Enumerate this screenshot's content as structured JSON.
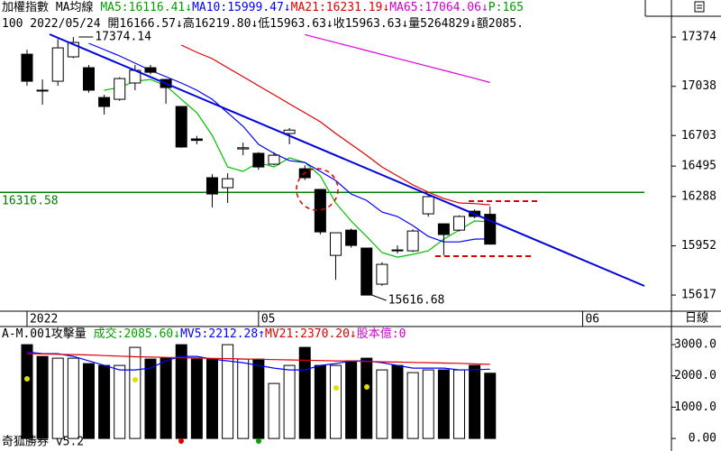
{
  "header": {
    "title": "加權指數 MA均線",
    "indicators": [
      {
        "text": "MA5:16116.41↓",
        "color": "#00a000"
      },
      {
        "text": "MA10:15999.47↓",
        "color": "#0000ff"
      },
      {
        "text": "MA21:16231.19↓",
        "color": "#e00000"
      },
      {
        "text": "MA65:17064.06↓",
        "color": "#d000d0"
      },
      {
        "text": "P:165",
        "color": "#00a000"
      }
    ],
    "quote": "100 2022/05/24 開16166.57↓高16219.80↓低15963.63↓收15963.63↓量5264829↓額2085."
  },
  "period": "日線",
  "footer": "奇狐勝券 v5.2",
  "chart_data": [
    {
      "type": "candlestick",
      "up_color": "#ffffff",
      "down_color": "#000000",
      "open": [
        17257,
        17012,
        17073,
        17239,
        17165,
        16962,
        16950,
        17061,
        17165,
        17085,
        16901,
        16680,
        16416,
        16348,
        16612,
        16582,
        16508,
        16717,
        16477,
        16336,
        15887,
        16059,
        15937,
        15691,
        15924,
        15918,
        16170,
        16102,
        16059,
        16188,
        16166.57
      ],
      "high": [
        17288,
        17085,
        17360,
        17374.14,
        17184,
        16981,
        17100,
        17184,
        17184,
        17085,
        16901,
        16700,
        16440,
        16446,
        16655,
        16590,
        16590,
        16754,
        16500,
        16340,
        16041,
        16070,
        15937,
        15840,
        15955,
        16065,
        16300,
        16102,
        16160,
        16200,
        16219.8
      ],
      "low": [
        17042,
        16913,
        17042,
        17230,
        16995,
        16846,
        16940,
        17012,
        17120,
        16919,
        16620,
        16643,
        16213,
        16244,
        16569,
        16470,
        16500,
        16643,
        16400,
        16030,
        15721,
        15940,
        15616.68,
        15680,
        15900,
        15910,
        16150,
        15887,
        16050,
        16140,
        15963.63
      ],
      "close": [
        17073,
        17006,
        17300,
        17337,
        17012,
        16901,
        17091,
        17147,
        17134,
        17030,
        16625,
        16670,
        16305,
        16409,
        16620,
        16489,
        16569,
        16740,
        16416,
        16047,
        16041,
        15955,
        15616.68,
        15826,
        15918,
        16053,
        16287,
        16029,
        16152,
        16152,
        15963.63
      ],
      "lines": [
        {
          "name": "MA5",
          "color": "#00c000",
          "values": [
            null,
            null,
            null,
            null,
            null,
            17012,
            17030,
            17073,
            17085,
            17042,
            16950,
            16858,
            16704,
            16489,
            16459,
            16520,
            16489,
            16551,
            16520,
            16428,
            16244,
            16121,
            16016,
            15906,
            15875,
            15894,
            15918,
            15998,
            16059,
            16121,
            16116.41
          ]
        },
        {
          "name": "MA10",
          "color": "#0000ff",
          "values": [
            null,
            null,
            null,
            null,
            17331,
            17288,
            17245,
            17196,
            17147,
            17104,
            17061,
            17012,
            16950,
            16858,
            16766,
            16643,
            16582,
            16532,
            16520,
            16459,
            16397,
            16305,
            16262,
            16182,
            16152,
            16090,
            16016,
            15979,
            15979,
            15998,
            15999.47
          ]
        },
        {
          "name": "MA21",
          "color": "#e00000",
          "values": [
            null,
            null,
            null,
            null,
            null,
            null,
            null,
            null,
            null,
            null,
            17319,
            17270,
            17227,
            17165,
            17104,
            17042,
            16981,
            16919,
            16858,
            16797,
            16717,
            16643,
            16569,
            16489,
            16428,
            16367,
            16317,
            16274,
            16244,
            16240,
            16231.19
          ]
        },
        {
          "name": "MA65",
          "color": "#e000e0",
          "values": [
            null,
            null,
            null,
            null,
            null,
            null,
            null,
            null,
            null,
            null,
            null,
            null,
            null,
            null,
            null,
            null,
            null,
            null,
            17390,
            17363,
            17336,
            17309,
            17282,
            17255,
            17228,
            17201,
            17174,
            17147,
            17120,
            17093,
            17064.06
          ]
        }
      ],
      "ylim": [
        15507,
        17626
      ],
      "yticks": [
        17374,
        17038,
        16703,
        16495,
        16288,
        15952,
        15617
      ],
      "xlim": [
        -1.75,
        40
      ],
      "xticks": [
        {
          "value": 0,
          "label": "2022"
        },
        {
          "value": 15,
          "label": "05"
        },
        {
          "value": 36,
          "label": "06"
        }
      ],
      "reference_line": {
        "value": 16316.58,
        "label": "16316.58",
        "color": "#008000"
      },
      "annotations": [
        {
          "index": 3,
          "value": 17374.14,
          "label": "17374.14"
        },
        {
          "index": 22,
          "value": 15616.68,
          "label": "15616.68"
        }
      ]
    },
    {
      "type": "bar",
      "title": "A-M.001攻擊量",
      "indicators": [
        {
          "text": "成交:2085.60↓",
          "color": "#00a000"
        },
        {
          "text": "MV5:2212.28↑",
          "color": "#0000ff"
        },
        {
          "text": "MV21:2370.20↓",
          "color": "#e00000"
        },
        {
          "text": "股本億:0",
          "color": "#d000d0"
        }
      ],
      "values": [
        2997,
        2622,
        2565,
        2565,
        2392,
        2334,
        2334,
        2911,
        2536,
        2565,
        2997,
        2536,
        2536,
        2997,
        2536,
        2536,
        1758,
        2334,
        2911,
        2334,
        2334,
        2478,
        2565,
        2190,
        2334,
        2104,
        2190,
        2190,
        2190,
        2334,
        2085.6
      ],
      "lines": [
        {
          "name": "MV5",
          "color": "#0000ff",
          "values": [
            2767,
            2709,
            2709,
            2622,
            2478,
            2334,
            2190,
            2190,
            2248,
            2478,
            2622,
            2622,
            2536,
            2478,
            2421,
            2334,
            2248,
            2190,
            2190,
            2334,
            2392,
            2478,
            2478,
            2421,
            2334,
            2248,
            2248,
            2248,
            2190,
            2200,
            2212.28
          ]
        },
        {
          "name": "MV21",
          "color": "#e00000",
          "values": [
            2709,
            2700,
            2690,
            2680,
            2670,
            2650,
            2630,
            2610,
            2600,
            2590,
            2580,
            2570,
            2560,
            2550,
            2540,
            2530,
            2520,
            2510,
            2500,
            2490,
            2480,
            2470,
            2460,
            2450,
            2440,
            2430,
            2420,
            2410,
            2400,
            2380,
            2370.2
          ]
        }
      ],
      "ylim": [
        -400,
        3490
      ],
      "yticks": [
        {
          "value": 3000,
          "label": "3000.0"
        },
        {
          "value": 2000,
          "label": "2000.0"
        },
        {
          "value": 1000,
          "label": "1000.0"
        },
        {
          "value": 0,
          "label": "0.00"
        }
      ]
    }
  ]
}
